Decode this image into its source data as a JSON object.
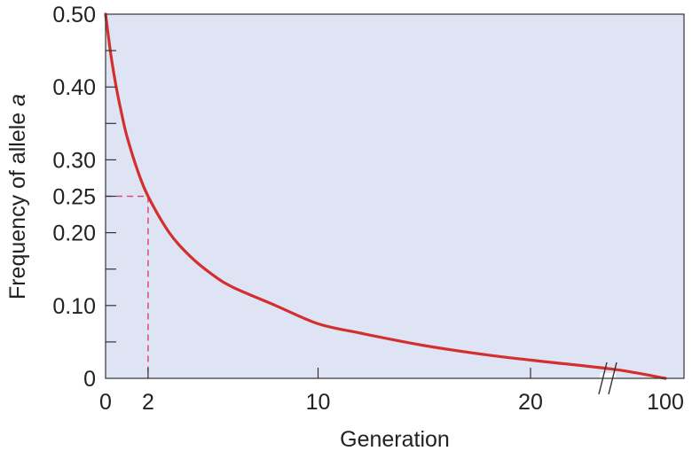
{
  "chart_data": {
    "type": "line",
    "title": "",
    "xlabel": "Generation",
    "ylabel": "Frequency of allele a",
    "ylabel_main": "Frequency of allele ",
    "ylabel_italic": "a",
    "x_axis_break": true,
    "xlim": [
      0,
      100
    ],
    "ylim": [
      0,
      0.5
    ],
    "x_ticks": [
      {
        "value": 0,
        "label": "0"
      },
      {
        "value": 2,
        "label": "2"
      },
      {
        "value": 10,
        "label": "10"
      },
      {
        "value": 20,
        "label": "20"
      },
      {
        "value": 100,
        "label": "100"
      }
    ],
    "y_ticks": [
      {
        "value": 0,
        "label": "0"
      },
      {
        "value": 0.05,
        "label": ""
      },
      {
        "value": 0.1,
        "label": "0.10"
      },
      {
        "value": 0.15,
        "label": ""
      },
      {
        "value": 0.2,
        "label": "0.20"
      },
      {
        "value": 0.25,
        "label": "0.25"
      },
      {
        "value": 0.3,
        "label": "0.30"
      },
      {
        "value": 0.35,
        "label": ""
      },
      {
        "value": 0.4,
        "label": "0.40"
      },
      {
        "value": 0.45,
        "label": ""
      },
      {
        "value": 0.5,
        "label": "0.50"
      }
    ],
    "series": [
      {
        "color": "#d32f2f",
        "points": [
          {
            "x": 0,
            "y": 0.5
          },
          {
            "x": 0.25,
            "y": 0.444
          },
          {
            "x": 0.5,
            "y": 0.4
          },
          {
            "x": 0.75,
            "y": 0.364
          },
          {
            "x": 1,
            "y": 0.333
          },
          {
            "x": 1.5,
            "y": 0.286
          },
          {
            "x": 2,
            "y": 0.25
          },
          {
            "x": 3,
            "y": 0.2
          },
          {
            "x": 4,
            "y": 0.167
          },
          {
            "x": 5,
            "y": 0.143
          },
          {
            "x": 6,
            "y": 0.125
          },
          {
            "x": 8,
            "y": 0.1
          },
          {
            "x": 10,
            "y": 0.075
          },
          {
            "x": 12,
            "y": 0.062
          },
          {
            "x": 15,
            "y": 0.045
          },
          {
            "x": 18,
            "y": 0.032
          },
          {
            "x": 20,
            "y": 0.025
          },
          {
            "x": 24,
            "y": 0.012
          },
          {
            "x": 100,
            "y": 0.0
          }
        ]
      }
    ],
    "reference_lines": {
      "x": 2,
      "y": 0.25,
      "color": "#d94a7a",
      "style": "dashed"
    },
    "plot_background": "#dfe4f4",
    "grid": false,
    "legend": "none"
  }
}
